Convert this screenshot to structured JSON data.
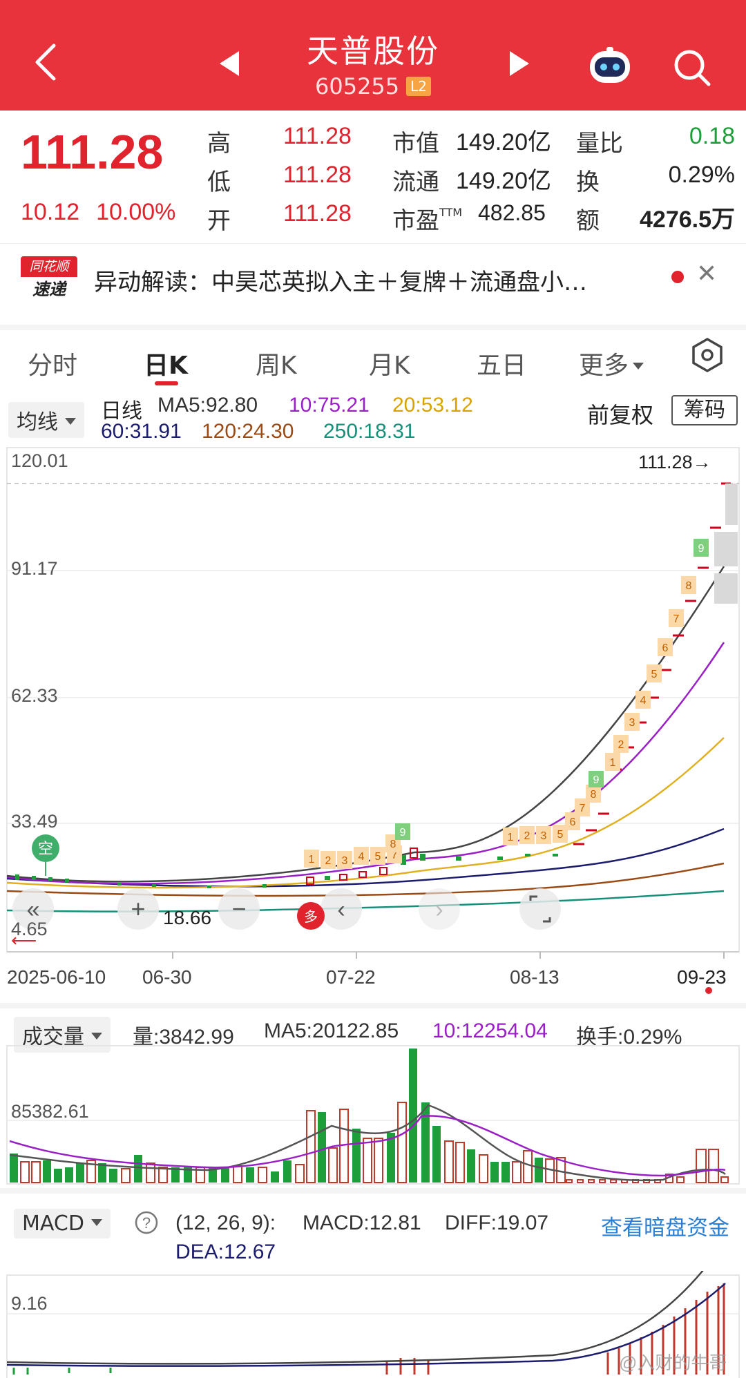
{
  "header": {
    "title": "天普股份",
    "code": "605255",
    "level_badge": "L2",
    "bg_color": "#e8323c"
  },
  "quote": {
    "price": "111.28",
    "change": "10.12",
    "change_pct": "10.00%",
    "high_label": "高",
    "high": "111.28",
    "low_label": "低",
    "low": "111.28",
    "open_label": "开",
    "open": "111.28",
    "mktcap_label": "市值",
    "mktcap": "149.20亿",
    "float_label": "流通",
    "float": "149.20亿",
    "pe_label": "市盈",
    "pe_sup": "TTM",
    "pe": "482.85",
    "volratio_label": "量比",
    "volratio": "0.18",
    "turnover_label": "换",
    "turnover": "0.29%",
    "amount_label": "额",
    "amount": "4276.5万"
  },
  "news": {
    "logo_top": "同花顺",
    "logo_bottom": "速递",
    "text": "异动解读：中昊芯英拟入主＋复牌＋流通盘小…"
  },
  "tabs": [
    "分时",
    "日K",
    "周K",
    "月K",
    "五日",
    "更多"
  ],
  "active_tab": "日K",
  "kline": {
    "indicator_select": "均线",
    "period": "日线",
    "ma5": "MA5:92.80",
    "ma10": "10:75.21",
    "ma20": "20:53.12",
    "ma60": "60:31.91",
    "ma120": "120:24.30",
    "ma250": "250:18.31",
    "adjust": "前复权",
    "chips_button": "筹码",
    "y_labels": [
      "120.01",
      "91.17",
      "62.33",
      "33.49",
      "4.65"
    ],
    "last_price_tag": "111.28→",
    "low_mark": "18.66",
    "empty_signal": "空",
    "long_signal": "多",
    "x_labels": [
      "2025-06-10",
      "06-30",
      "07-22",
      "08-13",
      "09-23"
    ],
    "colors": {
      "ma5": "#333333",
      "ma10": "#9b1fc7",
      "ma20": "#e0b020",
      "ma60": "#1c1c6e",
      "ma120": "#9a4a14",
      "ma250": "#17907a"
    }
  },
  "volume": {
    "select": "成交量",
    "vol": "量:3842.99",
    "ma5": "MA5:20122.85",
    "ma10": "10:12254.04",
    "turnover": "换手:0.29%",
    "y_label": "85382.61"
  },
  "macd": {
    "select": "MACD",
    "params": "(12, 26, 9):",
    "macd": "MACD:12.81",
    "diff": "DIFF:19.07",
    "dea": "DEA:12.67",
    "link": "查看暗盘资金",
    "y_label": "9.16"
  },
  "watermark": "@入财的牛哥"
}
